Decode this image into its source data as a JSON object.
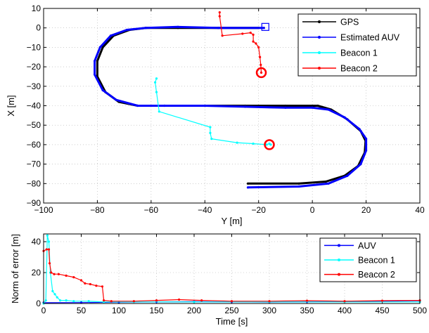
{
  "chart_data": [
    {
      "type": "line",
      "xlabel": "Y [m]",
      "ylabel": "X [m]",
      "xlim": [
        -100,
        40
      ],
      "ylim": [
        -90,
        10
      ],
      "xticks": [
        -100,
        -80,
        -60,
        -40,
        -20,
        0,
        20,
        40
      ],
      "yticks": [
        10,
        0,
        -10,
        -20,
        -30,
        -40,
        -50,
        -60,
        -70,
        -80,
        -90
      ],
      "grid": true,
      "legend": "top-right",
      "series": [
        {
          "name": "GPS",
          "color": "#000000",
          "points": [
            [
              -24,
              -80
            ],
            [
              -5,
              -80
            ],
            [
              5,
              -79
            ],
            [
              12,
              -76
            ],
            [
              17,
              -71
            ],
            [
              19.5,
              -64
            ],
            [
              19.8,
              -58
            ],
            [
              18,
              -53
            ],
            [
              13,
              -47
            ],
            [
              7,
              -42
            ],
            [
              2,
              -40
            ],
            [
              -10,
              -40
            ],
            [
              -25,
              -40
            ],
            [
              -40,
              -40
            ],
            [
              -55,
              -40
            ],
            [
              -65,
              -40
            ],
            [
              -72,
              -38
            ],
            [
              -77,
              -33
            ],
            [
              -80,
              -25
            ],
            [
              -80,
              -17
            ],
            [
              -78,
              -10
            ],
            [
              -74,
              -4
            ],
            [
              -68,
              -1
            ],
            [
              -62,
              0
            ],
            [
              -50,
              0
            ],
            [
              -35,
              0
            ],
            [
              -20,
              0
            ]
          ]
        },
        {
          "name": "Estimated AUV",
          "color": "#0000ff",
          "points": [
            [
              -24,
              -82
            ],
            [
              -5,
              -81.5
            ],
            [
              6,
              -80
            ],
            [
              13,
              -76
            ],
            [
              18,
              -70
            ],
            [
              20,
              -63
            ],
            [
              20,
              -57
            ],
            [
              17.5,
              -52
            ],
            [
              12,
              -46
            ],
            [
              6,
              -42
            ],
            [
              0,
              -41
            ],
            [
              -10,
              -41
            ],
            [
              -25,
              -40.5
            ],
            [
              -40,
              -40
            ],
            [
              -55,
              -40
            ],
            [
              -65,
              -40
            ],
            [
              -73,
              -37
            ],
            [
              -78,
              -32
            ],
            [
              -81,
              -24
            ],
            [
              -81,
              -17
            ],
            [
              -79,
              -10
            ],
            [
              -75,
              -4
            ],
            [
              -69,
              -1
            ],
            [
              -62,
              0
            ],
            [
              -50,
              0.5
            ],
            [
              -35,
              0
            ],
            [
              -18,
              0
            ]
          ]
        },
        {
          "name": "Beacon 1",
          "color": "#00ffff",
          "points": [
            [
              -58,
              -26
            ],
            [
              -58.5,
              -28
            ],
            [
              -58,
              -33
            ],
            [
              -57,
              -43
            ],
            [
              -38,
              -51
            ],
            [
              -38,
              -54
            ],
            [
              -37.5,
              -57
            ],
            [
              -28,
              -59
            ],
            [
              -22,
              -59.5
            ],
            [
              -17,
              -60
            ],
            [
              -16,
              -59.5
            ],
            [
              -15.5,
              -60
            ]
          ]
        },
        {
          "name": "Beacon 2",
          "color": "#ff0000",
          "points": [
            [
              -34.5,
              8
            ],
            [
              -34.5,
              6
            ],
            [
              -33.5,
              -4
            ],
            [
              -26,
              -3
            ],
            [
              -23,
              -2.5
            ],
            [
              -22,
              -3.5
            ],
            [
              -22,
              -7
            ],
            [
              -21,
              -8
            ],
            [
              -20,
              -10
            ],
            [
              -19.5,
              -15
            ],
            [
              -19.2,
              -19
            ],
            [
              -19,
              -23
            ]
          ]
        }
      ],
      "markers": [
        {
          "type": "square",
          "at": [
            -17.5,
            0.5
          ],
          "color": "#0000ff"
        },
        {
          "type": "circle",
          "at": [
            -19,
            -23
          ],
          "color": "#ff0000"
        },
        {
          "type": "circle",
          "at": [
            -16,
            -60
          ],
          "color": "#ff0000"
        }
      ]
    },
    {
      "type": "line",
      "xlabel": "Time [s]",
      "ylabel": "Norm of error [m]",
      "xlim": [
        0,
        500
      ],
      "ylim": [
        0,
        45
      ],
      "xticks": [
        0,
        50,
        100,
        150,
        200,
        250,
        300,
        350,
        400,
        450,
        500
      ],
      "yticks": [
        0,
        20,
        40
      ],
      "grid": true,
      "legend": "top-right",
      "series": [
        {
          "name": "AUV",
          "color": "#0000ff",
          "points": [
            [
              0,
              0.5
            ],
            [
              50,
              0.6
            ],
            [
              100,
              0.8
            ],
            [
              150,
              1
            ],
            [
              200,
              1.2
            ],
            [
              250,
              1
            ],
            [
              300,
              0.9
            ],
            [
              350,
              1.1
            ],
            [
              400,
              1.3
            ],
            [
              450,
              1.5
            ],
            [
              500,
              1.8
            ]
          ]
        },
        {
          "name": "Beacon 1",
          "color": "#00ffff",
          "points": [
            [
              0,
              0
            ],
            [
              3,
              2
            ],
            [
              5,
              44
            ],
            [
              7,
              40
            ],
            [
              9,
              20
            ],
            [
              12,
              8
            ],
            [
              15,
              6
            ],
            [
              18,
              4
            ],
            [
              22,
              2
            ],
            [
              30,
              2
            ],
            [
              40,
              1.5
            ],
            [
              60,
              1.5
            ],
            [
              80,
              1
            ],
            [
              120,
              1
            ],
            [
              200,
              1
            ],
            [
              300,
              1
            ],
            [
              400,
              1
            ],
            [
              500,
              1
            ]
          ]
        },
        {
          "name": "Beacon 2",
          "color": "#ff0000",
          "points": [
            [
              0,
              34
            ],
            [
              4,
              35
            ],
            [
              7,
              35
            ],
            [
              8,
              26
            ],
            [
              10,
              20
            ],
            [
              14,
              19
            ],
            [
              20,
              19
            ],
            [
              30,
              18
            ],
            [
              40,
              17
            ],
            [
              50,
              15
            ],
            [
              55,
              13
            ],
            [
              62,
              12.5
            ],
            [
              70,
              11.5
            ],
            [
              78,
              11
            ],
            [
              80,
              2
            ],
            [
              90,
              1.5
            ],
            [
              120,
              1.5
            ],
            [
              150,
              2
            ],
            [
              180,
              2.5
            ],
            [
              210,
              2
            ],
            [
              250,
              1.5
            ],
            [
              300,
              1.5
            ],
            [
              350,
              1.8
            ],
            [
              400,
              1.5
            ],
            [
              450,
              1.8
            ],
            [
              500,
              2
            ]
          ]
        }
      ]
    }
  ]
}
